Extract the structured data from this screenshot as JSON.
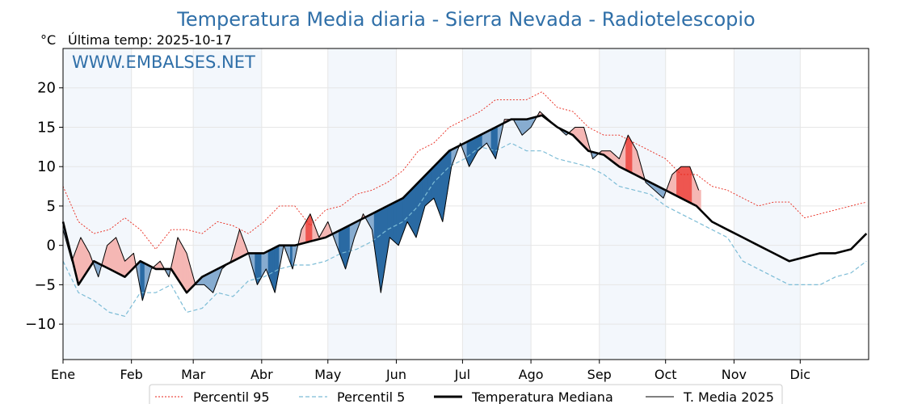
{
  "chart_data": {
    "type": "line",
    "title": "Temperatura Media diaria - Sierra Nevada - Radiotelescopio",
    "unit_label": "°C",
    "last_temp_label": "Última temp: 2025-10-17",
    "watermark": "WWW.EMBALSES.NET",
    "ylim": [
      -14.5,
      25
    ],
    "yticks": [
      20,
      15,
      10,
      5,
      0,
      -5,
      -10
    ],
    "ytick_labels": [
      "20",
      "15",
      "10",
      "5",
      "0",
      "−5",
      "−10"
    ],
    "months": [
      "Ene",
      "Feb",
      "Mar",
      "Abr",
      "May",
      "Jun",
      "Jul",
      "Ago",
      "Sep",
      "Oct",
      "Nov",
      "Dic"
    ],
    "grid": true,
    "legend_position": "bottom-center",
    "series": [
      {
        "name": "Percentil 95",
        "color": "#e8261a",
        "style": "dotted",
        "points": [
          [
            1,
            7.5
          ],
          [
            8,
            3
          ],
          [
            15,
            1.5
          ],
          [
            22,
            2
          ],
          [
            29,
            3.5
          ],
          [
            36,
            2
          ],
          [
            43,
            -0.5
          ],
          [
            50,
            2
          ],
          [
            57,
            2
          ],
          [
            64,
            1.5
          ],
          [
            71,
            3
          ],
          [
            78,
            2.5
          ],
          [
            85,
            1.5
          ],
          [
            92,
            3
          ],
          [
            99,
            5
          ],
          [
            106,
            5
          ],
          [
            113,
            2.5
          ],
          [
            120,
            4.5
          ],
          [
            127,
            5
          ],
          [
            134,
            6.5
          ],
          [
            141,
            7
          ],
          [
            148,
            8
          ],
          [
            155,
            9.5
          ],
          [
            162,
            12
          ],
          [
            169,
            13
          ],
          [
            176,
            15
          ],
          [
            183,
            16
          ],
          [
            190,
            17
          ],
          [
            197,
            18.5
          ],
          [
            204,
            18.5
          ],
          [
            211,
            18.5
          ],
          [
            218,
            19.5
          ],
          [
            225,
            17.5
          ],
          [
            232,
            17
          ],
          [
            239,
            15
          ],
          [
            246,
            14
          ],
          [
            253,
            14
          ],
          [
            260,
            13
          ],
          [
            267,
            12
          ],
          [
            274,
            11
          ],
          [
            281,
            9
          ],
          [
            288,
            9
          ],
          [
            295,
            7.5
          ],
          [
            302,
            7
          ],
          [
            309,
            6
          ],
          [
            316,
            5
          ],
          [
            323,
            5.5
          ],
          [
            330,
            5.5
          ],
          [
            337,
            3.5
          ],
          [
            344,
            4
          ],
          [
            351,
            4.5
          ],
          [
            358,
            5
          ],
          [
            365,
            5.5
          ]
        ]
      },
      {
        "name": "Percentil 5",
        "color": "#7cbcd6",
        "style": "dashed",
        "points": [
          [
            1,
            -2
          ],
          [
            8,
            -6
          ],
          [
            15,
            -7
          ],
          [
            22,
            -8.5
          ],
          [
            29,
            -9
          ],
          [
            36,
            -6
          ],
          [
            43,
            -6
          ],
          [
            50,
            -5
          ],
          [
            57,
            -8.5
          ],
          [
            64,
            -8
          ],
          [
            71,
            -6
          ],
          [
            78,
            -6.5
          ],
          [
            85,
            -4.5
          ],
          [
            92,
            -4
          ],
          [
            99,
            -3
          ],
          [
            106,
            -2.5
          ],
          [
            113,
            -2.5
          ],
          [
            120,
            -2
          ],
          [
            127,
            -1
          ],
          [
            134,
            -0.5
          ],
          [
            141,
            0.5
          ],
          [
            148,
            2
          ],
          [
            155,
            3
          ],
          [
            162,
            5
          ],
          [
            169,
            8
          ],
          [
            176,
            10
          ],
          [
            183,
            11
          ],
          [
            190,
            12.5
          ],
          [
            197,
            12
          ],
          [
            204,
            13
          ],
          [
            211,
            12
          ],
          [
            218,
            12
          ],
          [
            225,
            11
          ],
          [
            232,
            10.5
          ],
          [
            239,
            10
          ],
          [
            246,
            9
          ],
          [
            253,
            7.5
          ],
          [
            260,
            7
          ],
          [
            267,
            6.5
          ],
          [
            274,
            5
          ],
          [
            281,
            4
          ],
          [
            288,
            3
          ],
          [
            295,
            2
          ],
          [
            302,
            1
          ],
          [
            309,
            -2
          ],
          [
            316,
            -3
          ],
          [
            323,
            -4
          ],
          [
            330,
            -5
          ],
          [
            337,
            -5
          ],
          [
            344,
            -5
          ],
          [
            351,
            -4
          ],
          [
            358,
            -3.5
          ],
          [
            365,
            -2
          ]
        ]
      },
      {
        "name": "Temperatura Mediana",
        "color": "#000000",
        "style": "solid-thick",
        "points": [
          [
            1,
            3
          ],
          [
            8,
            -5
          ],
          [
            15,
            -2
          ],
          [
            22,
            -3
          ],
          [
            29,
            -4
          ],
          [
            36,
            -2
          ],
          [
            43,
            -3
          ],
          [
            50,
            -3
          ],
          [
            57,
            -6
          ],
          [
            64,
            -4
          ],
          [
            71,
            -3
          ],
          [
            78,
            -2
          ],
          [
            85,
            -1
          ],
          [
            92,
            -1
          ],
          [
            99,
            0
          ],
          [
            106,
            0
          ],
          [
            113,
            0.5
          ],
          [
            120,
            1
          ],
          [
            127,
            2
          ],
          [
            134,
            3
          ],
          [
            141,
            4
          ],
          [
            148,
            5
          ],
          [
            155,
            6
          ],
          [
            162,
            8
          ],
          [
            169,
            10
          ],
          [
            176,
            12
          ],
          [
            183,
            13
          ],
          [
            190,
            14
          ],
          [
            197,
            15
          ],
          [
            204,
            16
          ],
          [
            211,
            16
          ],
          [
            218,
            16.5
          ],
          [
            225,
            15
          ],
          [
            232,
            14
          ],
          [
            239,
            12
          ],
          [
            246,
            11.5
          ],
          [
            253,
            10
          ],
          [
            260,
            9
          ],
          [
            267,
            8
          ],
          [
            274,
            7
          ],
          [
            281,
            6
          ],
          [
            288,
            5
          ],
          [
            295,
            3
          ],
          [
            302,
            2
          ],
          [
            309,
            1
          ],
          [
            316,
            0
          ],
          [
            323,
            -1
          ],
          [
            330,
            -2
          ],
          [
            337,
            -1.5
          ],
          [
            344,
            -1
          ],
          [
            351,
            -1
          ],
          [
            358,
            -0.5
          ],
          [
            365,
            1.5
          ]
        ]
      },
      {
        "name": "T. Media 2025",
        "color": "#000000",
        "style": "solid-thin",
        "last_day": 290,
        "points": [
          [
            1,
            2
          ],
          [
            5,
            -2
          ],
          [
            9,
            1
          ],
          [
            13,
            -1
          ],
          [
            17,
            -4
          ],
          [
            21,
            0
          ],
          [
            25,
            1
          ],
          [
            29,
            -2
          ],
          [
            33,
            -1
          ],
          [
            37,
            -7
          ],
          [
            41,
            -3
          ],
          [
            45,
            -2
          ],
          [
            49,
            -4
          ],
          [
            53,
            1
          ],
          [
            57,
            -1
          ],
          [
            61,
            -5
          ],
          [
            65,
            -5
          ],
          [
            69,
            -6
          ],
          [
            73,
            -3
          ],
          [
            77,
            -2
          ],
          [
            81,
            2
          ],
          [
            85,
            -1
          ],
          [
            89,
            -5
          ],
          [
            93,
            -3
          ],
          [
            97,
            -6
          ],
          [
            101,
            0
          ],
          [
            105,
            -3
          ],
          [
            109,
            2
          ],
          [
            113,
            4
          ],
          [
            117,
            1
          ],
          [
            121,
            3
          ],
          [
            125,
            0
          ],
          [
            129,
            -3
          ],
          [
            133,
            1
          ],
          [
            137,
            4
          ],
          [
            141,
            2
          ],
          [
            145,
            -6
          ],
          [
            149,
            1
          ],
          [
            153,
            0
          ],
          [
            157,
            3
          ],
          [
            161,
            1
          ],
          [
            165,
            5
          ],
          [
            169,
            6
          ],
          [
            173,
            3
          ],
          [
            177,
            10
          ],
          [
            181,
            13
          ],
          [
            185,
            10
          ],
          [
            189,
            12
          ],
          [
            193,
            13
          ],
          [
            197,
            11
          ],
          [
            201,
            16
          ],
          [
            205,
            16
          ],
          [
            209,
            14
          ],
          [
            213,
            15
          ],
          [
            217,
            17
          ],
          [
            221,
            16
          ],
          [
            225,
            15
          ],
          [
            229,
            14
          ],
          [
            233,
            15
          ],
          [
            237,
            15
          ],
          [
            241,
            11
          ],
          [
            245,
            12
          ],
          [
            249,
            12
          ],
          [
            253,
            11
          ],
          [
            257,
            14
          ],
          [
            261,
            12
          ],
          [
            265,
            8
          ],
          [
            269,
            7
          ],
          [
            273,
            6
          ],
          [
            277,
            9
          ],
          [
            281,
            10
          ],
          [
            285,
            10
          ],
          [
            289,
            7
          ]
        ]
      }
    ]
  },
  "legend": {
    "p95": "Percentil 95",
    "p5": "Percentil 5",
    "median": "Temperatura Mediana",
    "media2025": "T. Media 2025"
  }
}
